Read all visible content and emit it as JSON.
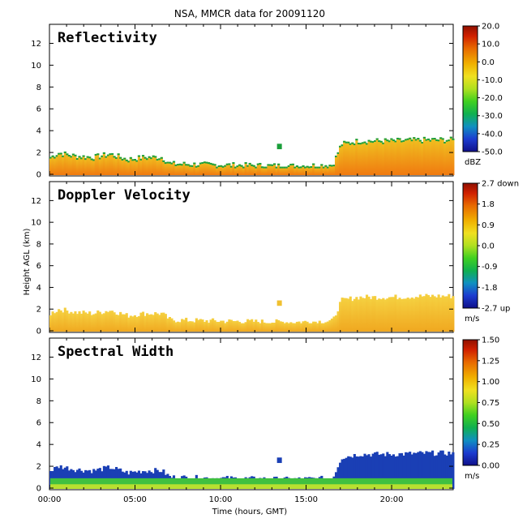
{
  "chart_data": {
    "type": "heatmap",
    "title": "NSA, MMCR data for 20091120",
    "xlabel": "Time (hours, GMT)",
    "ylabel": "Height AGL (km)",
    "xlim": [
      0,
      23.6
    ],
    "x_ticks": [
      "00:00",
      "05:00",
      "10:00",
      "15:00",
      "20:00"
    ],
    "y_ticks": [
      "0",
      "2",
      "4",
      "6",
      "8",
      "10",
      "12"
    ],
    "ylim": [
      0,
      13
    ],
    "panels": [
      {
        "title": "Reflectivity",
        "colorbar": {
          "unit": "dBZ",
          "labels": [
            "20.0",
            "10.0",
            "0.0",
            "-10.0",
            "-20.0",
            "-30.0",
            "-40.0",
            "-50.0"
          ],
          "range": [
            -50,
            20
          ]
        }
      },
      {
        "title": "Doppler Velocity",
        "colorbar": {
          "unit": "m/s",
          "labels": [
            "2.7 down",
            "1.8",
            "0.9",
            "0.0",
            "-0.9",
            "-1.8",
            "-2.7 up"
          ],
          "range": [
            -2.7,
            2.7
          ]
        }
      },
      {
        "title": "Spectral Width",
        "colorbar": {
          "unit": "m/s",
          "labels": [
            "1.50",
            "1.25",
            "1.00",
            "0.75",
            "0.50",
            "0.25",
            "0.00"
          ],
          "range": [
            0,
            1.5
          ]
        }
      }
    ],
    "cloud_top_km": [
      {
        "time": 0.0,
        "top": 1.6
      },
      {
        "time": 0.5,
        "top": 2.0
      },
      {
        "time": 1.5,
        "top": 1.7
      },
      {
        "time": 2.5,
        "top": 1.6
      },
      {
        "time": 3.5,
        "top": 1.9
      },
      {
        "time": 4.5,
        "top": 1.4
      },
      {
        "time": 5.5,
        "top": 1.6
      },
      {
        "time": 6.5,
        "top": 1.6
      },
      {
        "time": 7.0,
        "top": 1.0
      },
      {
        "time": 10.0,
        "top": 0.9
      },
      {
        "time": 14.0,
        "top": 0.8
      },
      {
        "time": 16.5,
        "top": 0.9
      },
      {
        "time": 17.0,
        "top": 2.8
      },
      {
        "time": 18.0,
        "top": 3.1
      },
      {
        "time": 20.0,
        "top": 3.1
      },
      {
        "time": 22.0,
        "top": 3.2
      },
      {
        "time": 23.6,
        "top": 3.2
      }
    ]
  }
}
